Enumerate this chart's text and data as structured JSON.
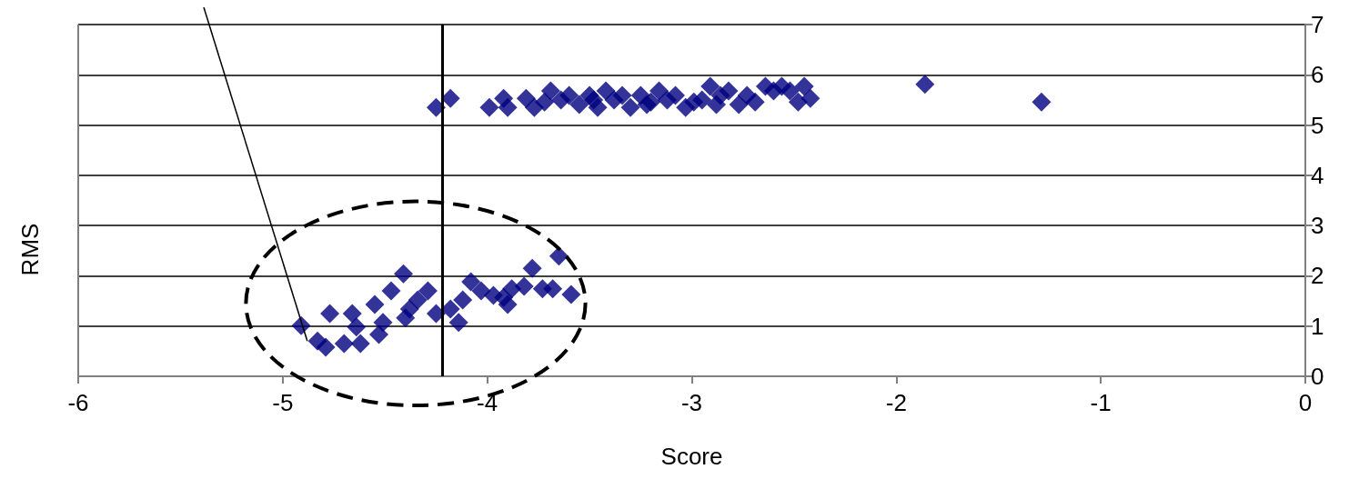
{
  "chart_data": {
    "type": "scatter",
    "xlabel": "Score",
    "ylabel": "RMS",
    "xlim": [
      -6,
      0
    ],
    "xticks": [
      -6,
      -5,
      -4,
      -3,
      -2,
      -1,
      0
    ],
    "ylim": [
      0,
      7
    ],
    "yticks": [
      0,
      1,
      2,
      3,
      4,
      5,
      6,
      7
    ],
    "grid": "y",
    "marker": "diamond",
    "ref_lines": [
      {
        "axis": "x",
        "value": -4.22,
        "color": "#000000"
      }
    ],
    "series": [
      {
        "color": "#000080",
        "x": [
          -4.91,
          -4.83,
          -4.79,
          -4.7,
          -4.62,
          -4.77,
          -4.66,
          -4.55,
          -4.47,
          -4.41,
          -4.51,
          -4.4,
          -4.34,
          -4.29,
          -4.25,
          -4.18,
          -4.14,
          -4.12,
          -4.08,
          -4.03,
          -3.97,
          -3.9,
          -3.88,
          -3.82,
          -3.78,
          -3.73,
          -3.65,
          -3.68,
          -3.59,
          -3.92,
          -4.38,
          -4.64,
          -4.53,
          -4.25,
          -4.18,
          -3.99,
          -3.92,
          -3.9,
          -3.81,
          -3.77,
          -3.69,
          -3.55,
          -3.42,
          -3.3,
          -3.16,
          -3.03,
          -2.91,
          -2.77,
          -2.64,
          -2.56,
          -2.48,
          -2.42,
          -2.45,
          -3.34,
          -3.08,
          -2.82,
          -3.6,
          -2.95,
          -2.69,
          -3.72,
          -3.64,
          -3.5,
          -3.46,
          -3.38,
          -3.25,
          -3.2,
          -3.12,
          -2.99,
          -2.86,
          -2.73,
          -2.6,
          -2.52,
          -3.48,
          -3.22,
          -2.88,
          -1.86,
          -1.29
        ],
        "values": [
          1.01,
          0.7,
          0.58,
          0.65,
          0.65,
          1.25,
          1.25,
          1.43,
          1.7,
          2.04,
          1.07,
          1.16,
          1.52,
          1.7,
          1.25,
          1.34,
          1.07,
          1.52,
          1.88,
          1.7,
          1.61,
          1.43,
          1.74,
          1.79,
          2.15,
          1.74,
          2.39,
          1.74,
          1.63,
          1.57,
          1.34,
          0.98,
          0.83,
          5.35,
          5.53,
          5.35,
          5.53,
          5.35,
          5.53,
          5.35,
          5.68,
          5.41,
          5.68,
          5.35,
          5.68,
          5.35,
          5.77,
          5.41,
          5.77,
          5.77,
          5.46,
          5.53,
          5.77,
          5.59,
          5.59,
          5.68,
          5.59,
          5.5,
          5.46,
          5.46,
          5.5,
          5.59,
          5.35,
          5.5,
          5.59,
          5.46,
          5.5,
          5.46,
          5.59,
          5.59,
          5.68,
          5.68,
          5.5,
          5.41,
          5.41,
          5.81,
          5.46
        ]
      },
      {
        "type": "line",
        "color": "#000000",
        "marker": "none",
        "x": [
          -5.36,
          -4.88
        ],
        "values": [
          7,
          0.7
        ]
      }
    ]
  }
}
